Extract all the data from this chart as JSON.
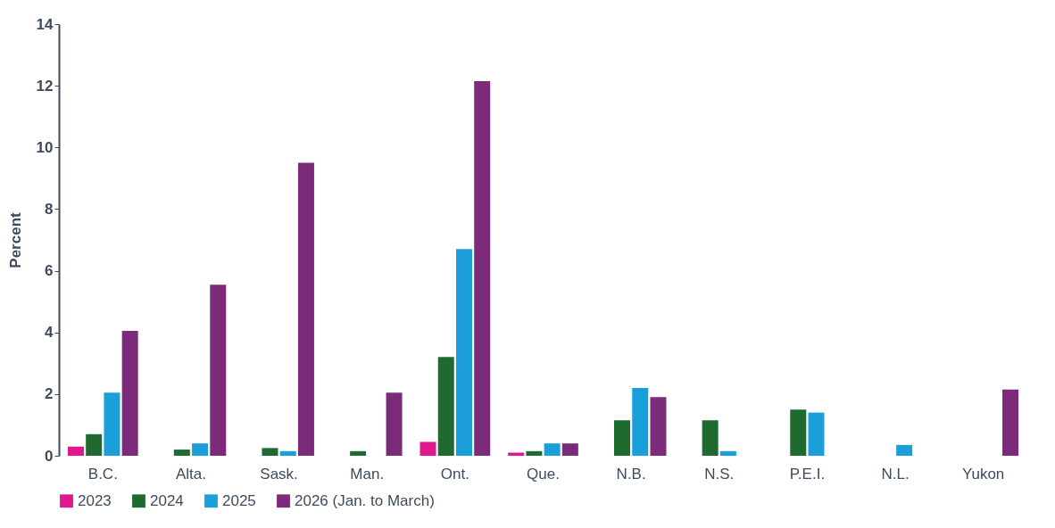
{
  "chart_data": {
    "type": "bar",
    "ylabel": "Percent",
    "categories": [
      "B.C.",
      "Alta.",
      "Sask.",
      "Man.",
      "Ont.",
      "Que.",
      "N.B.",
      "N.S.",
      "P.E.I.",
      "N.L.",
      "Yukon"
    ],
    "series": [
      {
        "name": "2023",
        "color": "#e2168e",
        "values": [
          0.3,
          null,
          null,
          null,
          0.45,
          0.1,
          null,
          null,
          null,
          null,
          null
        ]
      },
      {
        "name": "2024",
        "color": "#1f6a2e",
        "values": [
          0.7,
          0.2,
          0.25,
          0.15,
          3.2,
          0.15,
          1.15,
          1.15,
          1.5,
          null,
          null
        ]
      },
      {
        "name": "2025",
        "color": "#1a9fdb",
        "values": [
          2.05,
          0.4,
          0.15,
          null,
          6.7,
          0.4,
          2.2,
          0.15,
          1.4,
          0.35,
          null
        ]
      },
      {
        "name": "2026 (Jan. to March)",
        "color": "#7b2b7a",
        "values": [
          4.05,
          5.55,
          9.5,
          2.05,
          12.15,
          0.4,
          1.9,
          null,
          null,
          null,
          2.15
        ]
      }
    ],
    "ylim": [
      0,
      14
    ],
    "yticks": [
      0,
      2,
      4,
      6,
      8,
      10,
      12,
      14
    ],
    "grid": false,
    "legend": "bottom"
  }
}
